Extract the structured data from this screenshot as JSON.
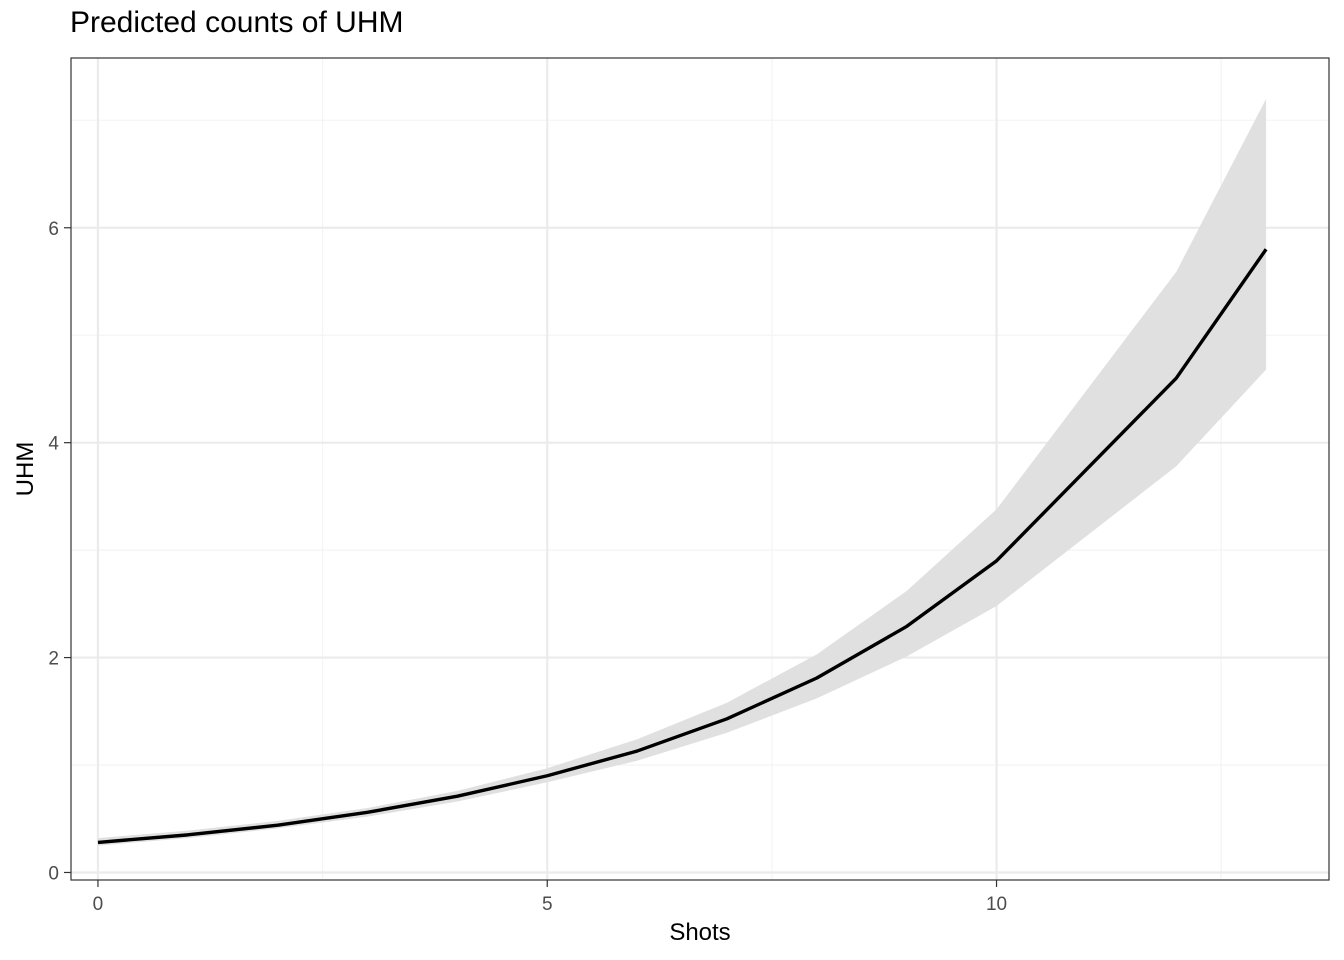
{
  "chart_data": {
    "type": "line",
    "title": "Predicted counts of UHM",
    "xlabel": "Shots",
    "ylabel": "UHM",
    "xlim": [
      -0.3,
      13.7
    ],
    "ylim": [
      -0.07,
      7.58
    ],
    "x_ticks": [
      0,
      5,
      10
    ],
    "y_ticks": [
      0,
      2,
      4,
      6
    ],
    "grid": true,
    "series": [
      {
        "x": [
          0,
          1,
          2,
          3,
          4,
          5,
          6,
          7,
          8,
          9,
          10,
          12,
          13
        ],
        "values": [
          0.28,
          0.35,
          0.44,
          0.56,
          0.71,
          0.9,
          1.13,
          1.43,
          1.81,
          2.29,
          2.9,
          4.6,
          5.8
        ],
        "ci_lower": [
          0.25,
          0.32,
          0.41,
          0.52,
          0.66,
          0.84,
          1.04,
          1.3,
          1.62,
          2.01,
          2.48,
          3.78,
          4.68
        ],
        "ci_upper": [
          0.32,
          0.39,
          0.48,
          0.6,
          0.76,
          0.97,
          1.24,
          1.58,
          2.03,
          2.62,
          3.38,
          5.59,
          7.2
        ]
      }
    ],
    "colors": {
      "line": "#000000",
      "ribbon": "#e0e0e0",
      "grid_major": "#ebebeb",
      "grid_minor": "#f4f4f4",
      "panel_border": "#333333"
    }
  }
}
